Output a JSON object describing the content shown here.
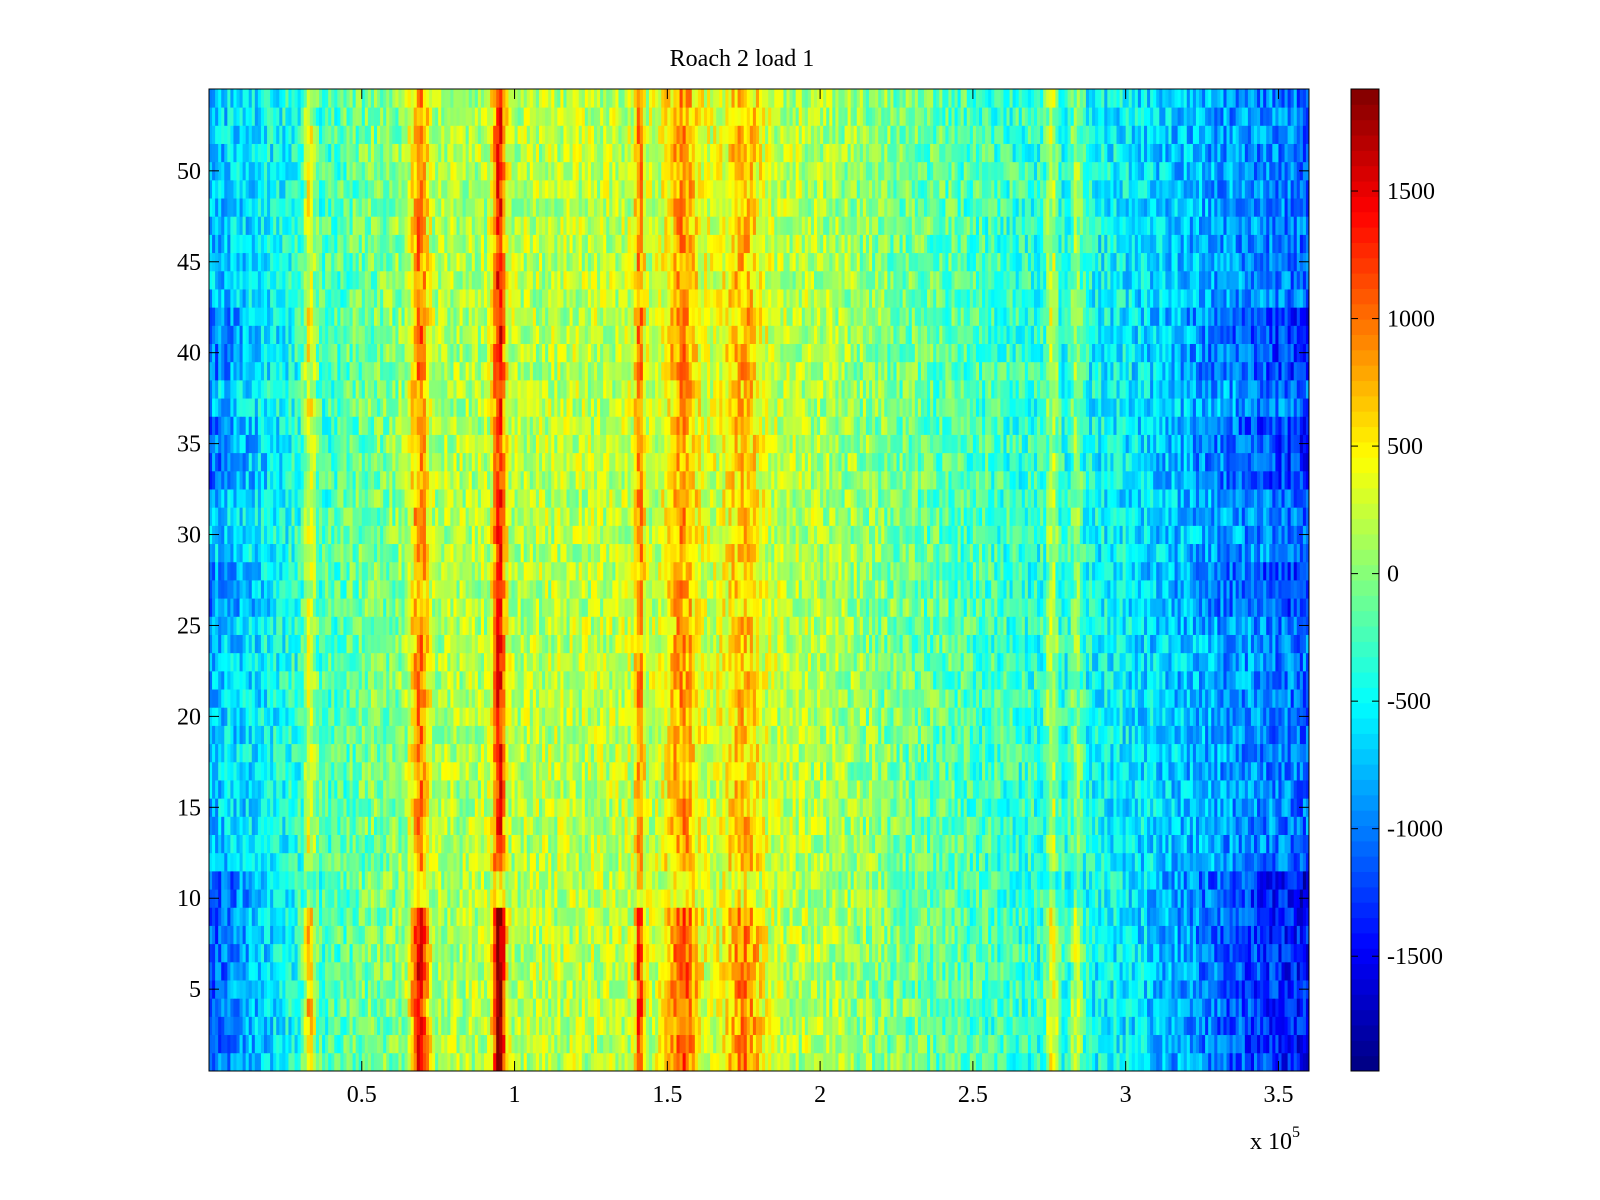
{
  "chart_data": {
    "type": "heatmap",
    "title": "Roach 2 load 1",
    "xlabel": "",
    "ylabel": "",
    "x_multiplier_label": {
      "base": "x 10",
      "exponent": "5"
    },
    "xlim": [
      0.0,
      3.6
    ],
    "ylim": [
      0.5,
      54.5
    ],
    "x_ticks": [
      0.5,
      1,
      1.5,
      2,
      2.5,
      3,
      3.5
    ],
    "x_tick_labels": [
      "0.5",
      "1",
      "1.5",
      "2",
      "2.5",
      "3",
      "3.5"
    ],
    "y_ticks": [
      5,
      10,
      15,
      20,
      25,
      30,
      35,
      40,
      45,
      50
    ],
    "y_tick_labels": [
      "5",
      "10",
      "15",
      "20",
      "25",
      "30",
      "35",
      "40",
      "45",
      "50"
    ],
    "rows": 54,
    "colormap": "jet",
    "colorbar": {
      "range": [
        -1950,
        1900
      ],
      "ticks": [
        1500,
        1000,
        500,
        0,
        -500,
        -1000,
        -1500
      ],
      "tick_labels": [
        "1500",
        "1000",
        "500",
        "0",
        "-500",
        "-1000",
        "-1500"
      ]
    },
    "baseline_profile": [
      {
        "x": 0.0,
        "value": -750
      },
      {
        "x": 0.2,
        "value": -500
      },
      {
        "x": 0.5,
        "value": -100
      },
      {
        "x": 0.8,
        "value": 150
      },
      {
        "x": 1.3,
        "value": 200
      },
      {
        "x": 1.7,
        "value": 260
      },
      {
        "x": 2.0,
        "value": 150
      },
      {
        "x": 2.3,
        "value": -100
      },
      {
        "x": 2.7,
        "value": -350
      },
      {
        "x": 3.0,
        "value": -550
      },
      {
        "x": 3.3,
        "value": -850
      },
      {
        "x": 3.6,
        "value": -1050
      }
    ],
    "vertical_bands": [
      {
        "x": 0.33,
        "width": 0.02,
        "amplitude": 700
      },
      {
        "x": 0.69,
        "width": 0.03,
        "amplitude": 900
      },
      {
        "x": 0.95,
        "width": 0.02,
        "amplitude": 1200
      },
      {
        "x": 1.41,
        "width": 0.015,
        "amplitude": 700
      },
      {
        "x": 1.55,
        "width": 0.05,
        "amplitude": 600
      },
      {
        "x": 1.75,
        "width": 0.06,
        "amplitude": 450
      },
      {
        "x": 2.76,
        "width": 0.02,
        "amplitude": 600
      },
      {
        "x": 2.84,
        "width": 0.02,
        "amplitude": 500
      }
    ],
    "row_offsets": [
      {
        "rows": [
          1,
          9
        ],
        "band_gain": 1.5,
        "edge_offset": -400
      },
      {
        "rows": [
          10,
          11
        ],
        "band_gain": 0.4,
        "edge_offset": -500
      },
      {
        "rows": [
          39,
          42
        ],
        "band_gain": 1.1,
        "edge_offset": -300
      },
      {
        "rows": [
          33,
          36
        ],
        "band_gain": 0.9,
        "edge_offset": -300
      },
      {
        "rows": [
          26,
          28
        ],
        "band_gain": 0.9,
        "edge_offset": -250
      }
    ]
  }
}
